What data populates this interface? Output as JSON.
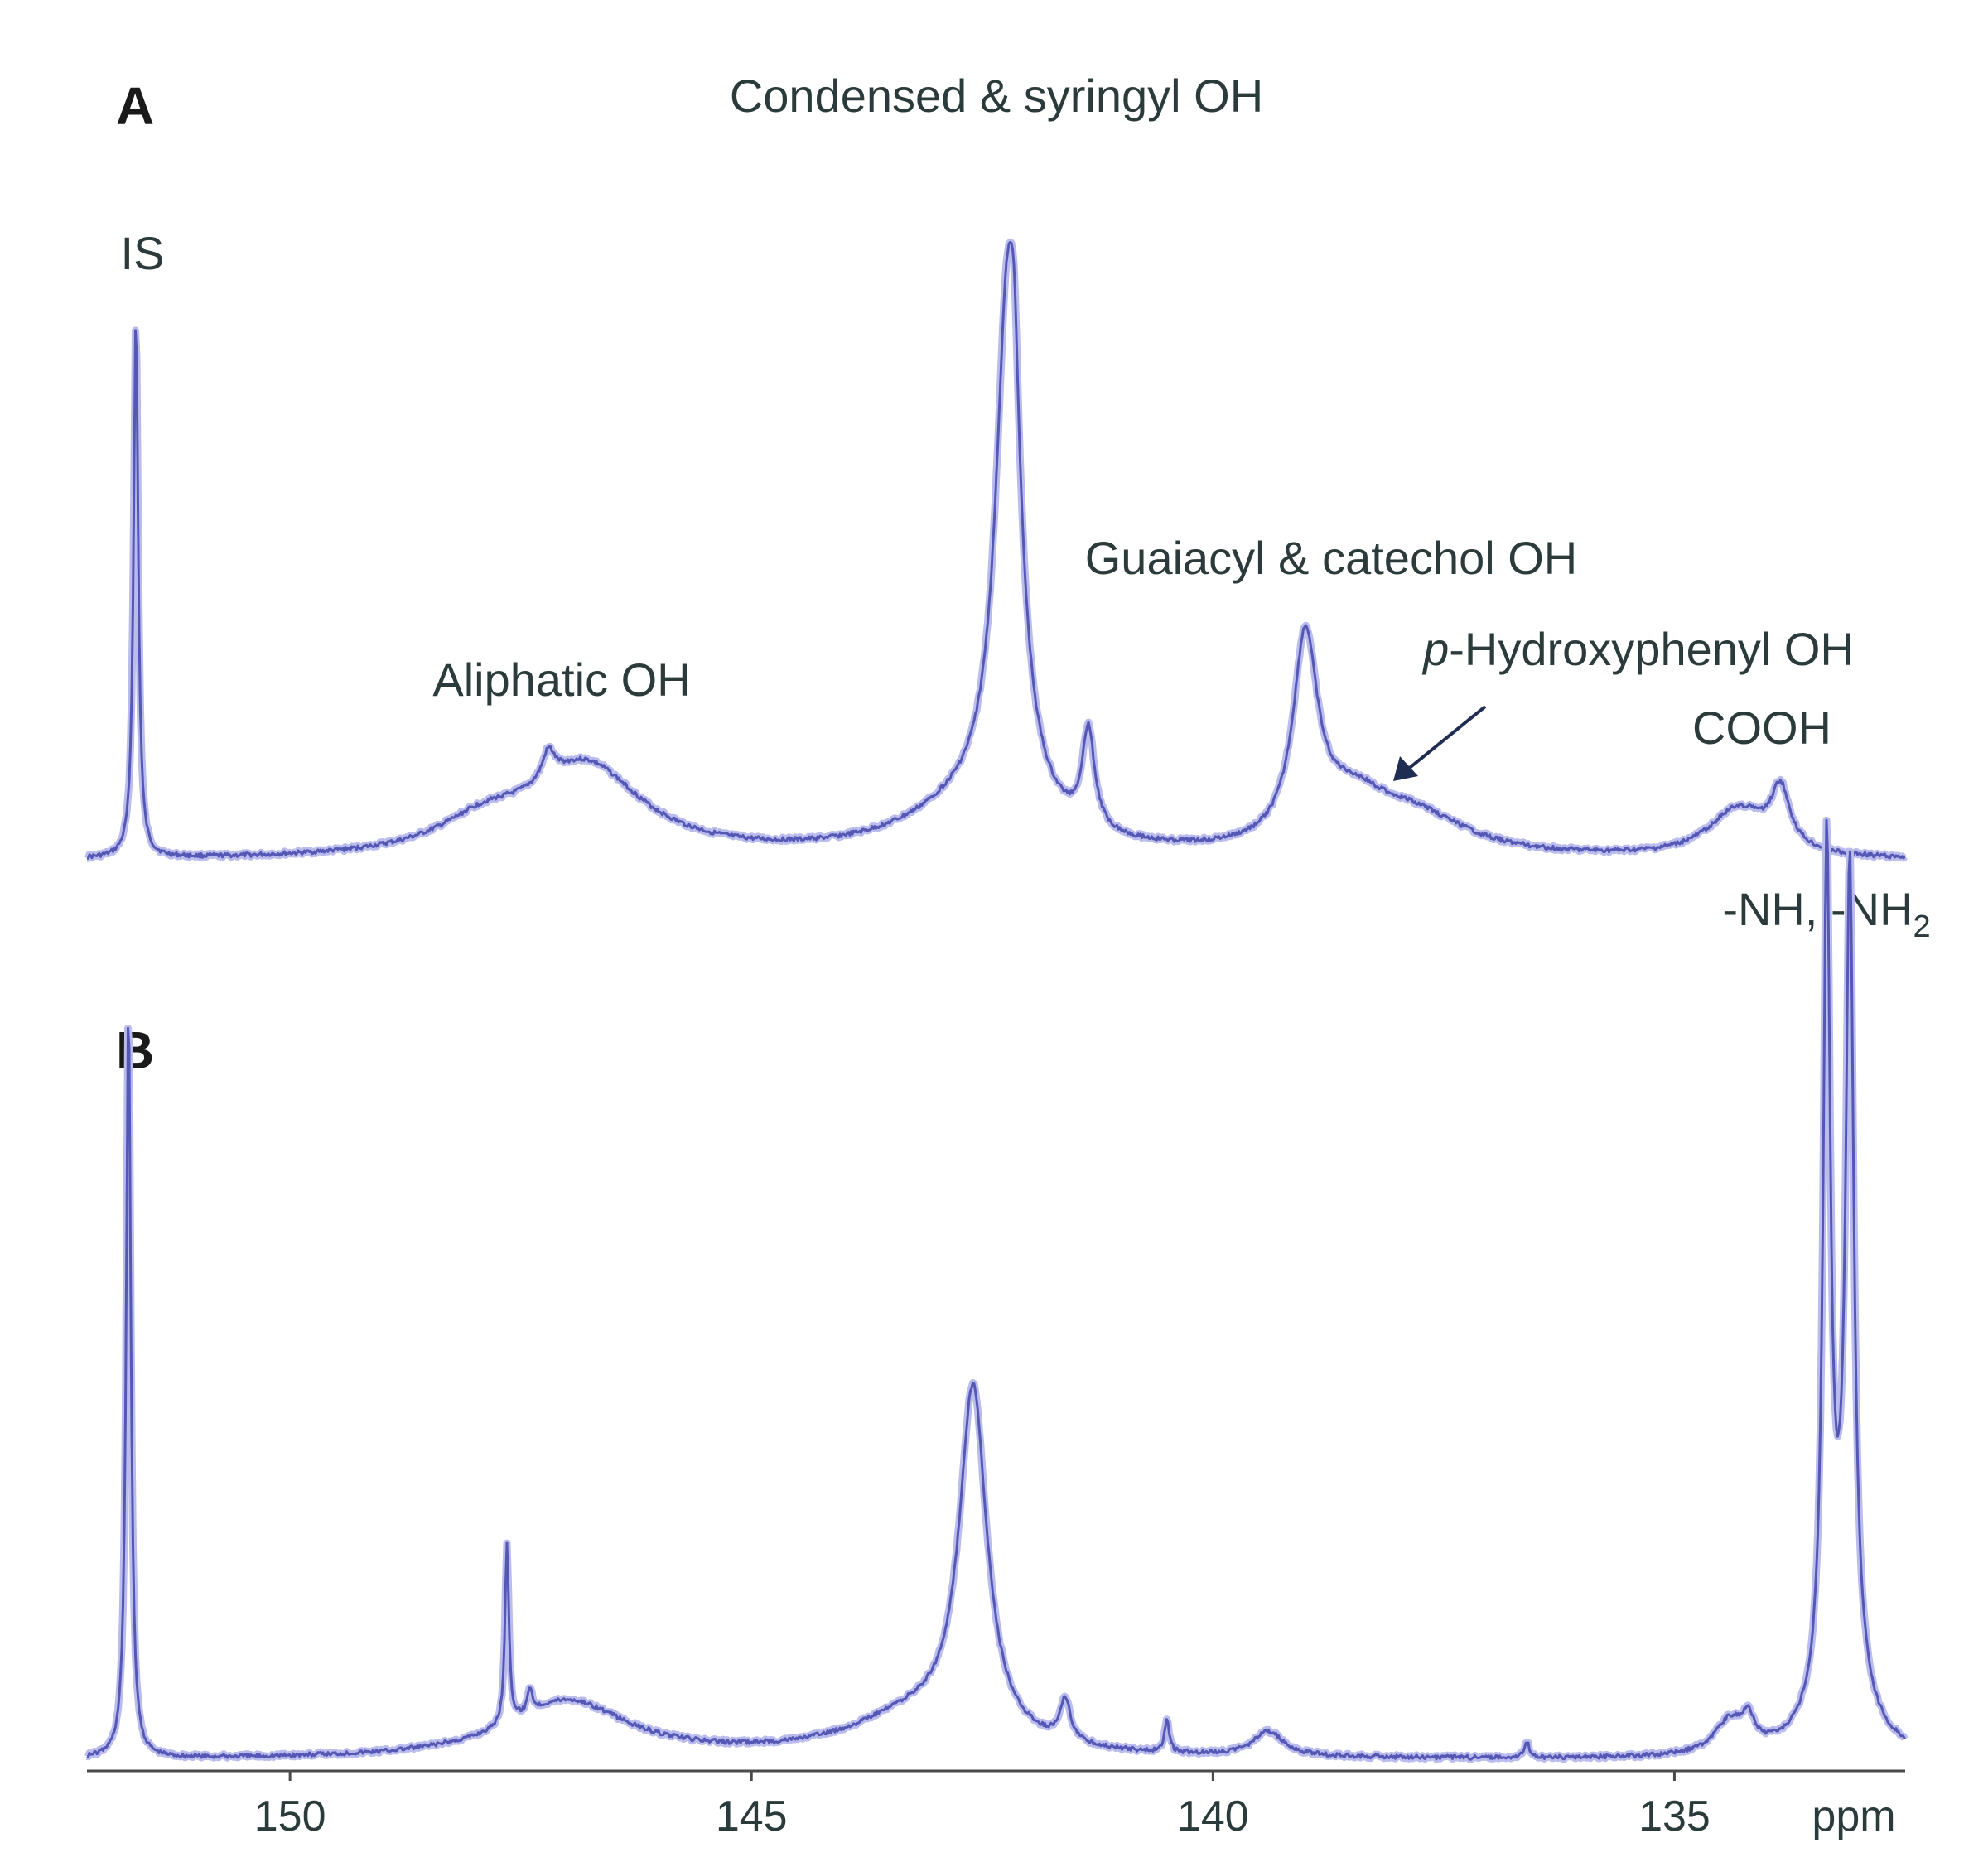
{
  "chart_data": {
    "type": "line",
    "x_axis": {
      "unit_label": "ppm",
      "ticks": [
        150,
        145,
        140,
        135
      ],
      "range": [
        152.2,
        132.5
      ],
      "reversed": true
    },
    "colors": {
      "spectrum": "#5557b5",
      "spectrum_glow": "#b9bcec",
      "text": "#2b3a3a"
    },
    "panels": [
      {
        "label": "A",
        "annotations": [
          {
            "text": "IS",
            "ppm": 151.7
          },
          {
            "text": "Aliphatic OH",
            "ppm": 147.0
          },
          {
            "text": "Condensed & syringyl OH",
            "ppm": 142.2
          },
          {
            "text": "Guaiacyl & catechol OH",
            "ppm": 139.0
          },
          {
            "text": "p-Hydroxyphenyl OH",
            "ppm": 138.1,
            "arrow": true
          },
          {
            "text": "COOH",
            "ppm": 133.9
          }
        ],
        "peaks": [
          {
            "ppm": 151.67,
            "height": 0.77,
            "width": 0.03
          },
          {
            "ppm": 147.2,
            "height": 0.04,
            "width": 0.08
          },
          {
            "ppm": 146.8,
            "height": 0.13,
            "width": 0.75
          },
          {
            "ppm": 147.9,
            "height": 0.04,
            "width": 0.6
          },
          {
            "ppm": 142.6,
            "height": 0.07,
            "width": 0.9
          },
          {
            "ppm": 142.22,
            "height": 0.76,
            "width": 0.16
          },
          {
            "ppm": 142.15,
            "height": 0.13,
            "width": 0.05
          },
          {
            "ppm": 141.35,
            "height": 0.14,
            "width": 0.08
          },
          {
            "ppm": 139.0,
            "height": 0.28,
            "width": 0.16
          },
          {
            "ppm": 138.5,
            "height": 0.07,
            "width": 0.5
          },
          {
            "ppm": 137.8,
            "height": 0.05,
            "width": 0.7
          },
          {
            "ppm": 134.3,
            "height": 0.07,
            "width": 0.4
          },
          {
            "ppm": 133.85,
            "height": 0.08,
            "width": 0.12
          }
        ]
      },
      {
        "label": "B",
        "annotations": [
          {
            "text": "-NH, -NH",
            "subscript": "2",
            "ppm": 132.8
          }
        ],
        "peaks": [
          {
            "ppm": 151.75,
            "height": 0.92,
            "width": 0.03
          },
          {
            "ppm": 147.65,
            "height": 0.22,
            "width": 0.025
          },
          {
            "ppm": 147.4,
            "height": 0.03,
            "width": 0.03
          },
          {
            "ppm": 147.0,
            "height": 0.07,
            "width": 0.8
          },
          {
            "ppm": 143.2,
            "height": 0.05,
            "width": 0.9
          },
          {
            "ppm": 142.6,
            "height": 0.42,
            "width": 0.18
          },
          {
            "ppm": 141.6,
            "height": 0.05,
            "width": 0.07
          },
          {
            "ppm": 140.5,
            "height": 0.04,
            "width": 0.03
          },
          {
            "ppm": 139.4,
            "height": 0.03,
            "width": 0.2
          },
          {
            "ppm": 136.6,
            "height": 0.02,
            "width": 0.03
          },
          {
            "ppm": 134.4,
            "height": 0.04,
            "width": 0.2
          },
          {
            "ppm": 134.2,
            "height": 0.03,
            "width": 0.08
          },
          {
            "ppm": 133.35,
            "height": 1.0,
            "width": 0.045
          },
          {
            "ppm": 133.1,
            "height": 0.95,
            "width": 0.05
          },
          {
            "ppm": 133.2,
            "height": 0.15,
            "width": 0.25
          }
        ]
      }
    ]
  }
}
